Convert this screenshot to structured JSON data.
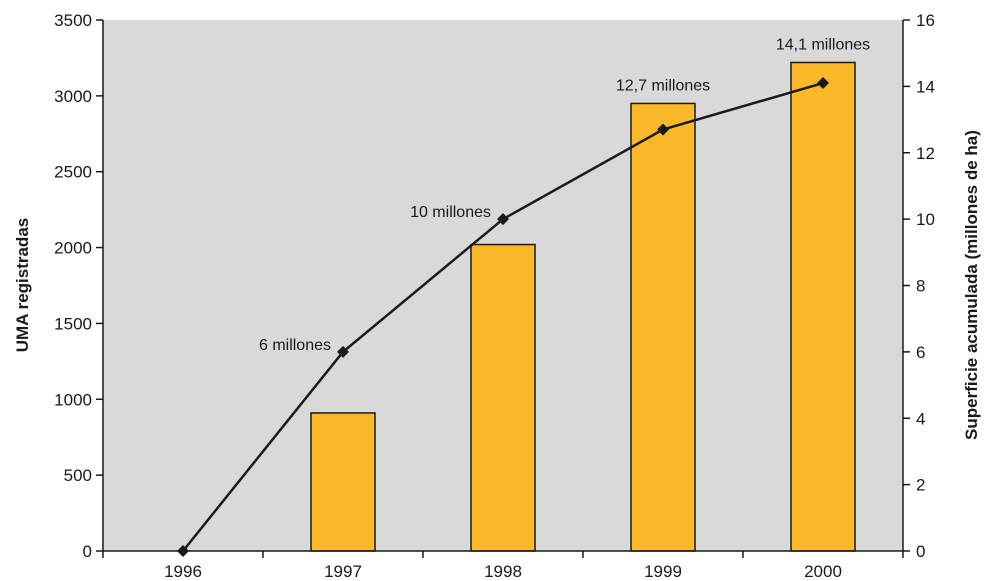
{
  "chart_data": {
    "type": "bar",
    "categories": [
      "1996",
      "1997",
      "1998",
      "1999",
      "2000"
    ],
    "title": "",
    "xlabel": "",
    "ylabel": "UMA registradas",
    "y2label": "Superficie acumulada (millones de ha)",
    "ylim": [
      0,
      3500
    ],
    "y2lim": [
      0,
      16
    ],
    "yticks": [
      "0",
      "500",
      "1000",
      "1500",
      "2000",
      "2500",
      "3000",
      "3500"
    ],
    "y2ticks": [
      "0",
      "2",
      "4",
      "6",
      "8",
      "10",
      "12",
      "14",
      "16"
    ],
    "grid": false,
    "series": [
      {
        "type": "bar",
        "axis": "left",
        "values": [
          0,
          910,
          2020,
          2950,
          3220
        ]
      },
      {
        "type": "line",
        "axis": "right",
        "marker": "diamond",
        "values": [
          0,
          6,
          10,
          12.7,
          14.1
        ]
      }
    ],
    "annotations": [
      {
        "category": "1997",
        "text": "6 millones"
      },
      {
        "category": "1998",
        "text": "10 millones"
      },
      {
        "category": "1999",
        "text": "12,7 millones"
      },
      {
        "category": "2000",
        "text": "14,1 millones"
      }
    ],
    "colors": {
      "plot_background": "#d9d9d9",
      "bar_fill": "#fbb829",
      "bar_stroke": "#1a1a1a",
      "line": "#1a1a1a"
    }
  }
}
